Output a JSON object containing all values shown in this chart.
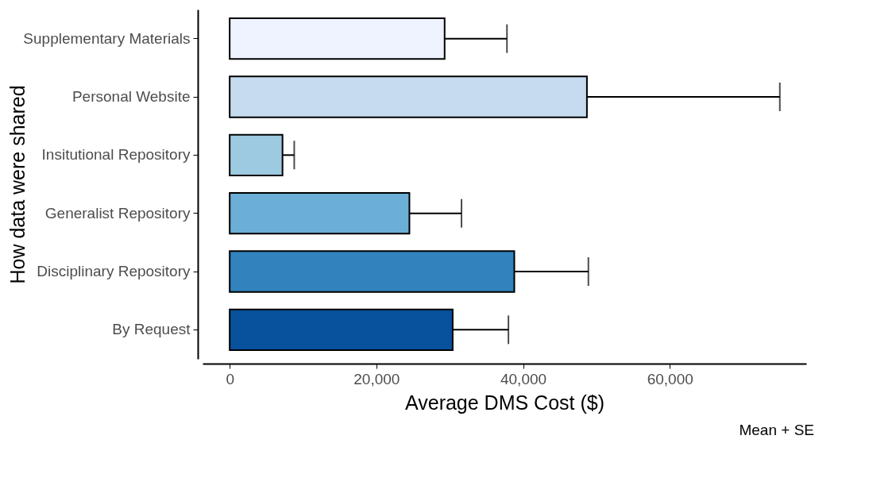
{
  "chart_data": {
    "type": "bar",
    "orientation": "horizontal",
    "xlabel": "Average DMS Cost ($)",
    "ylabel": "How data were shared",
    "categories": [
      "Supplementary Materials",
      "Personal Website",
      "Insitutional Repository",
      "Generalist Repository",
      "Disciplinary Repository",
      "By Request"
    ],
    "values": [
      29300,
      48700,
      7200,
      24500,
      38800,
      30400
    ],
    "errors": [
      [
        29300,
        37800
      ],
      [
        48700,
        75000
      ],
      [
        7200,
        8800
      ],
      [
        24500,
        31600
      ],
      [
        38800,
        48900
      ],
      [
        30400,
        38000
      ]
    ],
    "colors": [
      "#eff3ff",
      "#c6dbef",
      "#9ecae1",
      "#6baed6",
      "#3182bd",
      "#08519c"
    ],
    "xlim": [
      -3700,
      78600
    ],
    "xticks": [
      {
        "value": 0,
        "label": "0"
      },
      {
        "value": 20000,
        "label": "20,000"
      },
      {
        "value": 40000,
        "label": "40,000"
      },
      {
        "value": 60000,
        "label": "60,000"
      }
    ],
    "grid": false,
    "legend": false,
    "annotations": [
      "Mean + SE"
    ]
  }
}
